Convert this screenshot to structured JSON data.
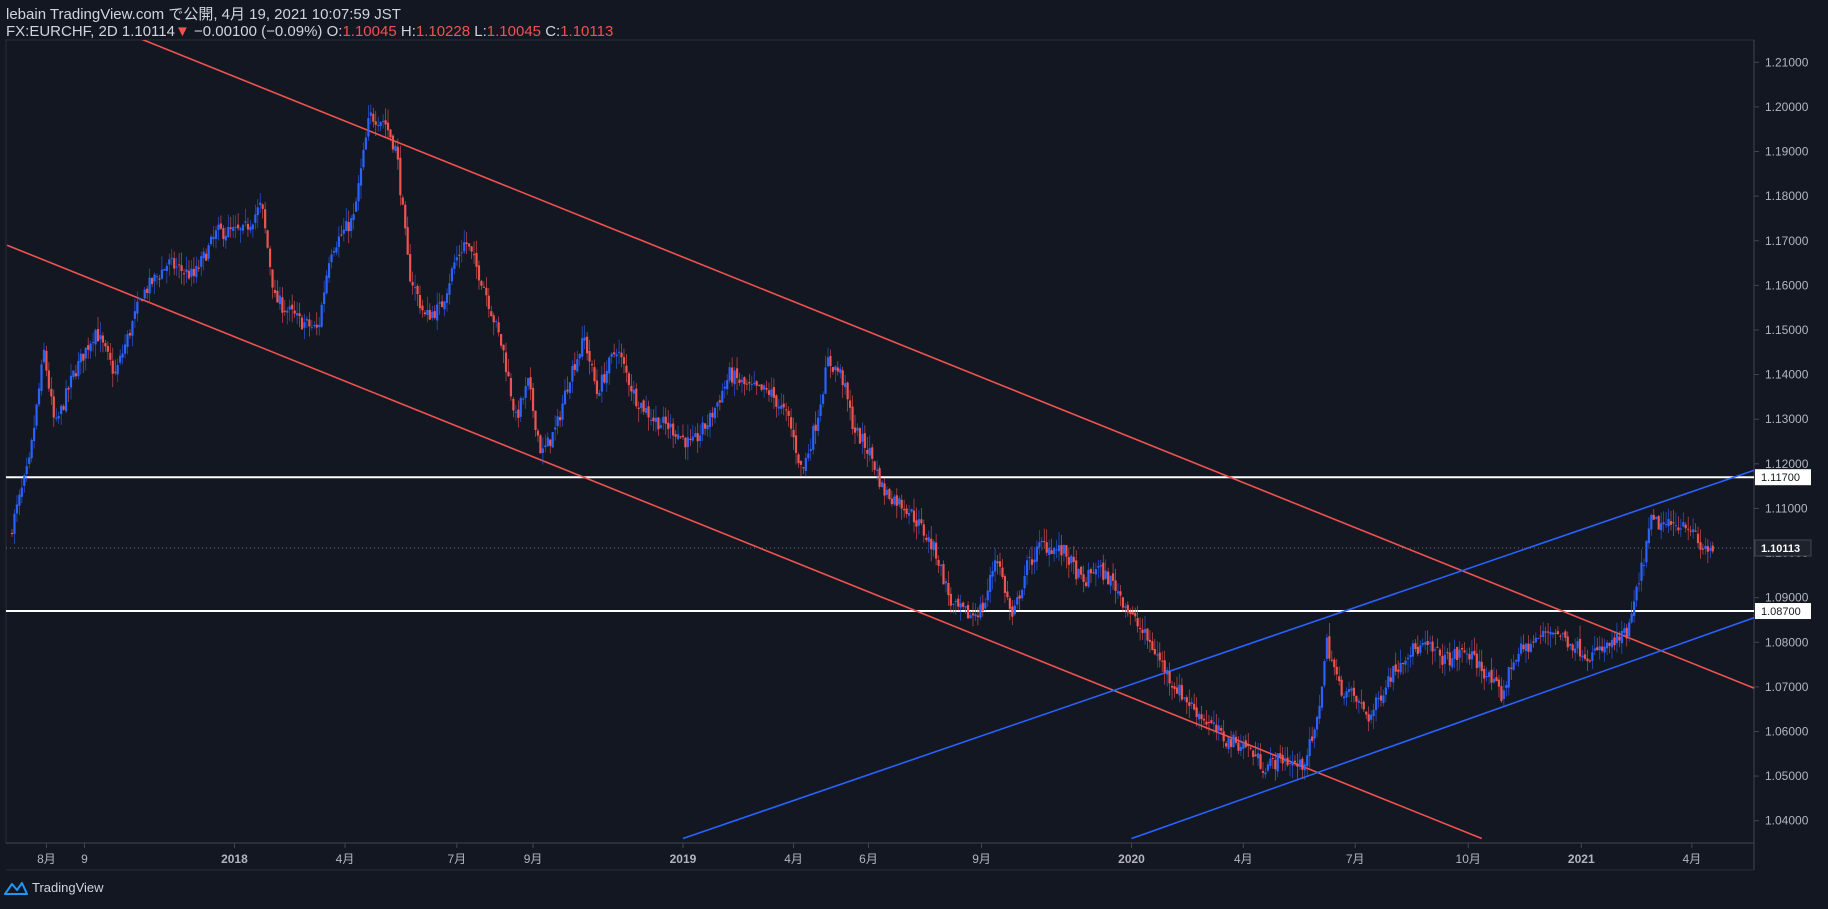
{
  "header": {
    "line1": "lebain TradingView.com で公開, 4月 19, 2021 10:07:59 JST",
    "symbol": "FX:EURCHF, 2D",
    "last": "1.10114",
    "change": "−0.00100 (−0.09%)",
    "o_label": "O:",
    "o_value": "1.10045",
    "h_label": "H:",
    "h_value": "1.10228",
    "l_label": "L:",
    "l_value": "1.10045",
    "c_label": "C:",
    "c_value": "1.10113"
  },
  "footer": {
    "brand": "TradingView",
    "icon": "tradingview-logo-icon"
  },
  "colors": {
    "up": "#2962ff",
    "down": "#ef5350",
    "background": "#131722",
    "axis": "#b2b5be"
  },
  "chart_data": {
    "type": "candlestick",
    "symbol": "FX:EURCHF",
    "interval": "2D",
    "ylim": [
      1.035,
      1.215
    ],
    "y_ticks": [
      "1.04000",
      "1.05000",
      "1.06000",
      "1.07000",
      "1.08000",
      "1.09000",
      "1.10000",
      "1.11000",
      "1.12000",
      "1.13000",
      "1.14000",
      "1.15000",
      "1.16000",
      "1.17000",
      "1.18000",
      "1.19000",
      "1.20000",
      "1.21000"
    ],
    "x_ticks": [
      {
        "label": "8月",
        "date": "2017-08-01",
        "bold": false
      },
      {
        "label": "9",
        "date": "2017-09-01",
        "bold": false
      },
      {
        "label": "2018",
        "date": "2018-01-01",
        "bold": true
      },
      {
        "label": "4月",
        "date": "2018-04-01",
        "bold": false
      },
      {
        "label": "7月",
        "date": "2018-07-01",
        "bold": false
      },
      {
        "label": "9月",
        "date": "2018-09-01",
        "bold": false
      },
      {
        "label": "2019",
        "date": "2019-01-01",
        "bold": true
      },
      {
        "label": "4月",
        "date": "2019-04-01",
        "bold": false
      },
      {
        "label": "6月",
        "date": "2019-06-01",
        "bold": false
      },
      {
        "label": "9月",
        "date": "2019-09-01",
        "bold": false
      },
      {
        "label": "2020",
        "date": "2020-01-01",
        "bold": true
      },
      {
        "label": "4月",
        "date": "2020-04-01",
        "bold": false
      },
      {
        "label": "7月",
        "date": "2020-07-01",
        "bold": false
      },
      {
        "label": "10月",
        "date": "2020-10-01",
        "bold": false
      },
      {
        "label": "2021",
        "date": "2021-01-01",
        "bold": true
      },
      {
        "label": "4月",
        "date": "2021-04-01",
        "bold": false
      }
    ],
    "price_path": [
      [
        "2017-07-04",
        1.104
      ],
      [
        "2017-07-20",
        1.12
      ],
      [
        "2017-08-01",
        1.145
      ],
      [
        "2017-08-10",
        1.128
      ],
      [
        "2017-08-25",
        1.14
      ],
      [
        "2017-09-12",
        1.15
      ],
      [
        "2017-09-28",
        1.14
      ],
      [
        "2017-10-20",
        1.158
      ],
      [
        "2017-11-10",
        1.165
      ],
      [
        "2017-12-01",
        1.162
      ],
      [
        "2017-12-20",
        1.172
      ],
      [
        "2018-01-10",
        1.172
      ],
      [
        "2018-01-25",
        1.178
      ],
      [
        "2018-02-05",
        1.157
      ],
      [
        "2018-02-25",
        1.152
      ],
      [
        "2018-03-12",
        1.15
      ],
      [
        "2018-03-22",
        1.168
      ],
      [
        "2018-04-10",
        1.175
      ],
      [
        "2018-04-23",
        1.198
      ],
      [
        "2018-05-05",
        1.197
      ],
      [
        "2018-05-15",
        1.19
      ],
      [
        "2018-05-25",
        1.163
      ],
      [
        "2018-06-07",
        1.153
      ],
      [
        "2018-06-20",
        1.155
      ],
      [
        "2018-07-01",
        1.165
      ],
      [
        "2018-07-10",
        1.17
      ],
      [
        "2018-07-25",
        1.16
      ],
      [
        "2018-08-10",
        1.145
      ],
      [
        "2018-08-20",
        1.13
      ],
      [
        "2018-08-30",
        1.138
      ],
      [
        "2018-09-10",
        1.122
      ],
      [
        "2018-09-22",
        1.128
      ],
      [
        "2018-10-03",
        1.14
      ],
      [
        "2018-10-15",
        1.148
      ],
      [
        "2018-10-25",
        1.136
      ],
      [
        "2018-11-10",
        1.146
      ],
      [
        "2018-11-25",
        1.135
      ],
      [
        "2018-12-10",
        1.13
      ],
      [
        "2018-12-25",
        1.128
      ],
      [
        "2019-01-10",
        1.124
      ],
      [
        "2019-01-25",
        1.13
      ],
      [
        "2019-02-10",
        1.14
      ],
      [
        "2019-02-25",
        1.137
      ],
      [
        "2019-03-15",
        1.136
      ],
      [
        "2019-03-30",
        1.13
      ],
      [
        "2019-04-10",
        1.118
      ],
      [
        "2019-04-22",
        1.13
      ],
      [
        "2019-05-01",
        1.143
      ],
      [
        "2019-05-12",
        1.14
      ],
      [
        "2019-05-22",
        1.128
      ],
      [
        "2019-06-05",
        1.122
      ],
      [
        "2019-06-15",
        1.114
      ],
      [
        "2019-06-25",
        1.112
      ],
      [
        "2019-07-05",
        1.11
      ],
      [
        "2019-07-15",
        1.106
      ],
      [
        "2019-07-28",
        1.1
      ],
      [
        "2019-08-10",
        1.088
      ],
      [
        "2019-08-25",
        1.086
      ],
      [
        "2019-09-05",
        1.088
      ],
      [
        "2019-09-15",
        1.1
      ],
      [
        "2019-09-28",
        1.085
      ],
      [
        "2019-10-10",
        1.097
      ],
      [
        "2019-10-22",
        1.102
      ],
      [
        "2019-11-10",
        1.1
      ],
      [
        "2019-11-25",
        1.093
      ],
      [
        "2019-12-05",
        1.097
      ],
      [
        "2019-12-20",
        1.093
      ],
      [
        "2020-01-05",
        1.085
      ],
      [
        "2020-01-20",
        1.079
      ],
      [
        "2020-02-05",
        1.071
      ],
      [
        "2020-02-20",
        1.066
      ],
      [
        "2020-03-05",
        1.062
      ],
      [
        "2020-03-20",
        1.058
      ],
      [
        "2020-04-05",
        1.057
      ],
      [
        "2020-04-20",
        1.052
      ],
      [
        "2020-05-05",
        1.054
      ],
      [
        "2020-05-20",
        1.052
      ],
      [
        "2020-06-01",
        1.06
      ],
      [
        "2020-06-10",
        1.08
      ],
      [
        "2020-06-20",
        1.07
      ],
      [
        "2020-07-01",
        1.068
      ],
      [
        "2020-07-15",
        1.063
      ],
      [
        "2020-07-30",
        1.072
      ],
      [
        "2020-08-15",
        1.078
      ],
      [
        "2020-08-30",
        1.079
      ],
      [
        "2020-09-15",
        1.076
      ],
      [
        "2020-10-01",
        1.078
      ],
      [
        "2020-10-15",
        1.074
      ],
      [
        "2020-10-30",
        1.068
      ],
      [
        "2020-11-10",
        1.077
      ],
      [
        "2020-11-25",
        1.08
      ],
      [
        "2020-12-10",
        1.083
      ],
      [
        "2020-12-25",
        1.08
      ],
      [
        "2021-01-10",
        1.077
      ],
      [
        "2021-01-25",
        1.079
      ],
      [
        "2021-02-10",
        1.082
      ],
      [
        "2021-02-20",
        1.095
      ],
      [
        "2021-03-01",
        1.107
      ],
      [
        "2021-03-15",
        1.106
      ],
      [
        "2021-03-30",
        1.107
      ],
      [
        "2021-04-10",
        1.101
      ],
      [
        "2021-04-19",
        1.1011
      ]
    ],
    "drawings": {
      "horizontal_lines": [
        {
          "price": 1.117,
          "label": "1.11700"
        },
        {
          "price": 1.087,
          "label": "1.08700"
        }
      ],
      "trend_lines": [
        {
          "color": "#ef5350",
          "from": [
            "2017-10-10",
            1.216
          ],
          "to": [
            "2021-06-06",
            1.068
          ]
        },
        {
          "color": "#ef5350",
          "from": [
            "2017-06-30",
            1.169
          ],
          "to": [
            "2020-10-12",
            1.036
          ]
        },
        {
          "color": "#2962ff",
          "from": [
            "2019-01-01",
            1.036
          ],
          "to": [
            "2021-06-06",
            1.12
          ]
        },
        {
          "color": "#2962ff",
          "from": [
            "2020-01-01",
            1.036
          ],
          "to": [
            "2021-06-06",
            1.087
          ]
        }
      ]
    },
    "current_price": {
      "value": 1.10113,
      "label": "1.10113"
    }
  }
}
